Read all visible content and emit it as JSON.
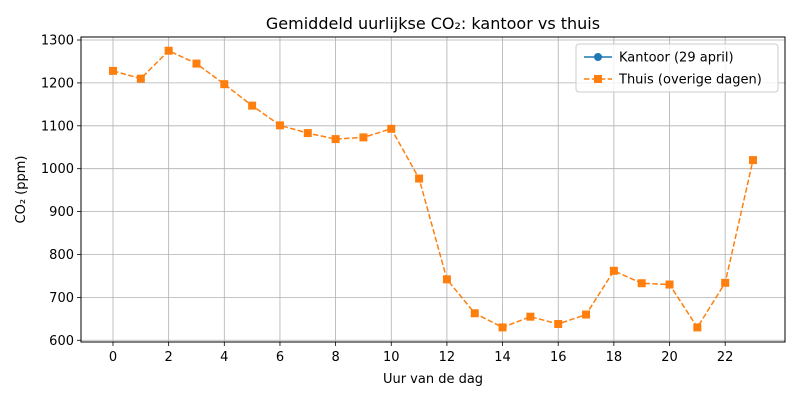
{
  "chart_data": {
    "type": "line",
    "title": "Gemiddeld uurlijkse CO₂: kantoor vs thuis",
    "xlabel": "Uur van de dag",
    "ylabel": "CO₂ (ppm)",
    "xlim": [
      -1.15,
      24.15
    ],
    "ylim": [
      596,
      1307
    ],
    "xticks": [
      0,
      2,
      4,
      6,
      8,
      10,
      12,
      14,
      16,
      18,
      20,
      22
    ],
    "yticks": [
      600,
      700,
      800,
      900,
      1000,
      1100,
      1200,
      1300
    ],
    "grid": true,
    "legend_position": "top-right",
    "series": [
      {
        "name": "Kantoor (29 april)",
        "color": "#1f77b4",
        "marker": "circle",
        "linestyle": "solid",
        "x": [],
        "y": []
      },
      {
        "name": "Thuis (overige dagen)",
        "color": "#ff7f0e",
        "marker": "square",
        "linestyle": "dashed",
        "x": [
          0,
          1,
          2,
          3,
          4,
          5,
          6,
          7,
          8,
          9,
          10,
          11,
          12,
          13,
          14,
          15,
          16,
          17,
          18,
          19,
          20,
          21,
          22,
          23
        ],
        "y": [
          1228,
          1210,
          1275,
          1245,
          1197,
          1147,
          1101,
          1083,
          1069,
          1073,
          1093,
          977,
          742,
          663,
          630,
          655,
          638,
          660,
          762,
          733,
          730,
          630,
          734,
          1020
        ]
      }
    ]
  }
}
